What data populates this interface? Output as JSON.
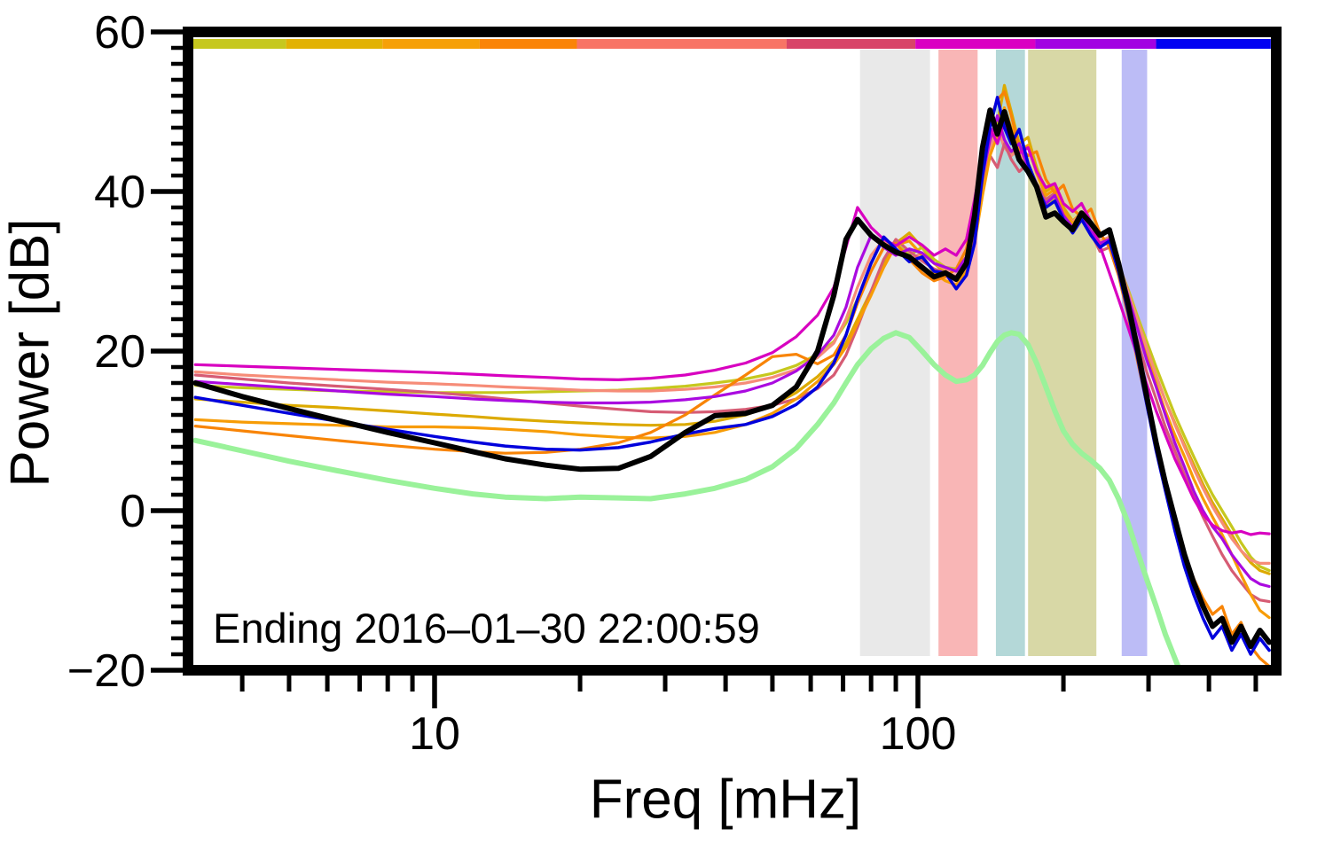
{
  "page": {
    "background": "#ffffff"
  },
  "chart_data": {
    "type": "line",
    "title": "",
    "xlabel": "Freq [mHz]",
    "ylabel": "Power [dB]",
    "annotation": "Ending 2016–01–30 22:00:59",
    "x_scale": "log",
    "xlim_mHz": [
      3.16,
      537
    ],
    "ylim_dB": [
      -20,
      60
    ],
    "grid": false,
    "legend": "none",
    "x_major_ticks": [
      {
        "value": 10,
        "label": "10"
      },
      {
        "value": 100,
        "label": "100"
      }
    ],
    "x_minor_ticks": [
      4,
      5,
      6,
      7,
      8,
      9,
      20,
      30,
      40,
      50,
      60,
      70,
      80,
      90,
      200,
      300,
      400,
      500
    ],
    "y_major_ticks": [
      {
        "value": -20,
        "label": "−20"
      },
      {
        "value": 0,
        "label": "0"
      },
      {
        "value": 20,
        "label": "20"
      },
      {
        "value": 40,
        "label": "40"
      },
      {
        "value": 60,
        "label": "60"
      }
    ],
    "y_minor_step_dB": 2,
    "top_colorbar": {
      "edges_mHz": [
        3.16,
        4.93,
        7.8,
        12.4,
        19.7,
        53.5,
        98.8,
        175,
        311,
        537
      ],
      "colors": [
        "#c6c81e",
        "#e2b204",
        "#f6a008",
        "#fa8408",
        "#f87466",
        "#d84468",
        "#da00c2",
        "#a202e2",
        "#0202f2"
      ]
    },
    "bands": [
      {
        "from_mHz": 75.9,
        "to_mHz": 105.9,
        "color": "#e9e9e9"
      },
      {
        "from_mHz": 110.3,
        "to_mHz": 132.9,
        "color": "#f9b6b6"
      },
      {
        "from_mHz": 145.0,
        "to_mHz": 166.5,
        "color": "#b4d8d8"
      },
      {
        "from_mHz": 169.0,
        "to_mHz": 234.0,
        "color": "#d8d8a6"
      },
      {
        "from_mHz": 264.0,
        "to_mHz": 298.0,
        "color": "#bcbcf6"
      }
    ],
    "freqs_mHz": [
      3.2,
      4,
      5,
      6.3,
      8,
      10,
      12,
      14,
      17,
      20,
      24,
      28,
      33,
      38,
      44,
      50,
      56,
      62,
      67,
      71,
      75,
      80,
      85,
      90,
      96,
      102,
      108,
      114,
      120,
      126,
      131,
      136,
      141,
      146,
      151,
      156,
      162,
      169,
      176,
      184,
      192,
      200,
      209,
      218,
      228,
      238,
      249,
      260,
      272,
      284,
      297,
      311,
      325,
      340,
      356,
      372,
      389,
      407,
      426,
      446,
      466,
      488,
      510,
      533
    ],
    "series": [
      {
        "name": "pale-green-spectrum",
        "color": "#9af29a",
        "width": 6,
        "values_dB": [
          8.8,
          7.5,
          6.2,
          5.0,
          3.8,
          2.8,
          2.1,
          1.7,
          1.5,
          1.7,
          1.6,
          1.5,
          2.1,
          2.8,
          3.9,
          5.5,
          7.8,
          10.8,
          13.5,
          16.0,
          18.3,
          20.3,
          21.6,
          22.3,
          21.7,
          20.0,
          18.3,
          17.0,
          16.2,
          16.4,
          17.0,
          18.2,
          19.8,
          21.2,
          22.0,
          22.3,
          22.1,
          20.8,
          18.5,
          15.5,
          12.5,
          10.0,
          8.3,
          7.2,
          6.3,
          5.3,
          3.8,
          1.5,
          -1.5,
          -5.0,
          -8.5,
          -12.0,
          -15.5,
          -18.5,
          -21.5,
          -24.0,
          -26.5,
          -29.0,
          -31.5,
          -34.0,
          -36.0,
          -38.0,
          -40.0,
          -42.0
        ]
      },
      {
        "name": "gold-spectrum",
        "color": "#dcaa00",
        "width": 3.2,
        "values_dB": [
          14.0,
          13.6,
          13.2,
          12.9,
          12.5,
          12.1,
          11.8,
          11.5,
          11.2,
          11.0,
          10.8,
          10.7,
          10.8,
          11.2,
          12.0,
          13.2,
          14.8,
          16.8,
          18.8,
          21.0,
          24.0,
          27.5,
          31.0,
          33.5,
          34.8,
          33.0,
          31.0,
          29.8,
          29.3,
          30.8,
          34.5,
          41.0,
          45.5,
          48.5,
          53.3,
          50.0,
          46.0,
          46.8,
          43.0,
          40.0,
          40.8,
          38.0,
          36.3,
          37.3,
          35.0,
          33.5,
          34.0,
          30.5,
          27.0,
          23.5,
          20.0,
          16.8,
          13.8,
          11.0,
          8.3,
          5.8,
          3.3,
          1.0,
          -1.0,
          -3.0,
          -5.0,
          -6.5,
          -7.5,
          -7.9
        ]
      },
      {
        "name": "yellow-olive-spectrum",
        "color": "#c6c81e",
        "width": 3.2,
        "values_dB": [
          15.7,
          15.4,
          15.2,
          15.0,
          14.9,
          14.8,
          14.8,
          14.8,
          14.9,
          15.0,
          15.1,
          15.3,
          15.6,
          16.0,
          16.5,
          17.2,
          18.2,
          19.6,
          21.2,
          23.5,
          26.5,
          30.0,
          33.0,
          33.5,
          32.0,
          33.0,
          31.5,
          30.5,
          30.3,
          31.8,
          35.5,
          41.5,
          46.0,
          48.5,
          46.0,
          44.5,
          45.5,
          42.8,
          40.3,
          38.3,
          39.0,
          37.0,
          35.8,
          36.5,
          34.8,
          33.3,
          33.8,
          30.8,
          27.8,
          24.5,
          21.3,
          18.0,
          15.0,
          12.0,
          9.3,
          6.8,
          4.3,
          2.0,
          0.0,
          -2.0,
          -4.0,
          -5.8,
          -7.0,
          -7.5
        ]
      },
      {
        "name": "salmon-spectrum",
        "color": "#f68c78",
        "width": 3.2,
        "values_dB": [
          17.4,
          17.0,
          16.7,
          16.4,
          16.1,
          15.9,
          15.7,
          15.5,
          15.3,
          15.1,
          15.0,
          15.0,
          15.2,
          15.5,
          16.0,
          16.7,
          17.7,
          19.2,
          21.0,
          24.0,
          28.0,
          32.0,
          34.0,
          32.5,
          31.5,
          32.3,
          31.0,
          30.3,
          30.0,
          31.5,
          35.0,
          41.5,
          45.5,
          48.0,
          45.5,
          44.5,
          45.3,
          42.5,
          40.5,
          38.8,
          39.3,
          37.3,
          36.2,
          37.2,
          35.2,
          33.8,
          34.3,
          31.0,
          27.5,
          24.0,
          20.5,
          17.0,
          13.8,
          10.8,
          8.0,
          5.3,
          2.8,
          0.5,
          -1.5,
          -3.5,
          -5.0,
          -6.2,
          -6.6,
          -6.6
        ]
      },
      {
        "name": "rose-spectrum",
        "color": "#d65c74",
        "width": 3.2,
        "values_dB": [
          17.0,
          16.5,
          16.0,
          15.6,
          15.2,
          14.8,
          14.4,
          14.0,
          13.5,
          13.1,
          12.7,
          12.4,
          12.3,
          12.4,
          12.7,
          13.2,
          14.0,
          15.3,
          17.0,
          19.5,
          23.0,
          27.5,
          31.5,
          34.0,
          32.5,
          31.3,
          30.3,
          29.8,
          29.3,
          30.8,
          34.5,
          40.5,
          44.5,
          43.0,
          46.0,
          44.0,
          42.5,
          43.5,
          41.0,
          39.0,
          39.8,
          37.5,
          36.0,
          36.8,
          34.8,
          32.5,
          33.0,
          29.5,
          25.5,
          21.5,
          17.5,
          14.0,
          10.5,
          7.5,
          4.5,
          1.8,
          -0.8,
          -3.2,
          -5.5,
          -7.5,
          -9.0,
          -10.5,
          -11.2,
          -11.4
        ]
      },
      {
        "name": "orange-spectrum",
        "color": "#f79c06",
        "width": 3.2,
        "values_dB": [
          11.4,
          11.1,
          10.9,
          10.7,
          10.5,
          10.5,
          10.4,
          10.2,
          9.9,
          9.5,
          9.2,
          9.1,
          9.3,
          9.8,
          10.8,
          12.2,
          14.0,
          16.2,
          18.3,
          20.5,
          23.5,
          27.0,
          30.5,
          33.3,
          33.8,
          32.0,
          29.8,
          28.8,
          28.3,
          30.0,
          33.5,
          39.5,
          44.5,
          47.0,
          50.5,
          48.0,
          45.0,
          45.8,
          42.3,
          39.5,
          40.3,
          37.5,
          36.0,
          37.0,
          34.8,
          33.3,
          33.8,
          30.3,
          26.8,
          23.0,
          19.3,
          15.8,
          12.5,
          9.5,
          6.8,
          4.0,
          1.5,
          -0.8,
          -3.0,
          -5.5,
          -8.0,
          -10.5,
          -12.5,
          -13.4
        ]
      },
      {
        "name": "dark-orange-spectrum",
        "color": "#f88406",
        "width": 3.2,
        "values_dB": [
          10.6,
          10.0,
          9.4,
          8.8,
          8.2,
          7.7,
          7.4,
          7.2,
          7.3,
          7.7,
          8.5,
          9.8,
          12.0,
          14.5,
          17.0,
          19.3,
          19.6,
          18.4,
          19.5,
          22.0,
          26.0,
          30.0,
          33.0,
          33.5,
          31.5,
          29.8,
          28.8,
          29.3,
          30.3,
          32.8,
          38.0,
          44.5,
          49.0,
          51.5,
          52.5,
          49.5,
          45.5,
          44.5,
          45.0,
          41.5,
          39.8,
          40.8,
          37.8,
          36.8,
          37.8,
          34.8,
          33.0,
          29.5,
          24.5,
          19.0,
          13.5,
          8.0,
          3.0,
          -1.5,
          -5.5,
          -8.5,
          -11.0,
          -13.0,
          -12.0,
          -15.5,
          -14.0,
          -17.0,
          -18.5,
          -19.5
        ]
      },
      {
        "name": "purple-spectrum",
        "color": "#aa0ae0",
        "width": 3.2,
        "values_dB": [
          16.2,
          15.8,
          15.4,
          15.0,
          14.6,
          14.3,
          14.0,
          13.8,
          13.6,
          13.5,
          13.5,
          13.6,
          13.9,
          14.3,
          15.0,
          16.0,
          17.5,
          19.5,
          22.0,
          25.5,
          30.5,
          34.5,
          33.0,
          32.0,
          32.8,
          32.3,
          31.0,
          30.5,
          30.0,
          31.8,
          35.5,
          42.0,
          46.5,
          49.5,
          46.5,
          45.0,
          46.0,
          43.0,
          40.2,
          38.5,
          39.5,
          37.0,
          35.5,
          37.0,
          35.0,
          33.5,
          34.0,
          30.5,
          27.0,
          23.0,
          19.0,
          15.5,
          12.0,
          8.5,
          5.5,
          2.5,
          0.0,
          -2.0,
          -3.5,
          -5.5,
          -7.0,
          -8.5,
          -9.2,
          -9.5
        ]
      },
      {
        "name": "magenta-spectrum",
        "color": "#d800c0",
        "width": 3.2,
        "values_dB": [
          18.3,
          18.1,
          17.9,
          17.7,
          17.5,
          17.3,
          17.1,
          16.9,
          16.7,
          16.5,
          16.4,
          16.6,
          17.0,
          17.6,
          18.5,
          19.8,
          21.8,
          24.5,
          28.0,
          33.0,
          38.0,
          35.5,
          34.0,
          33.2,
          34.3,
          33.3,
          32.0,
          32.8,
          32.0,
          34.0,
          39.0,
          44.5,
          48.0,
          46.0,
          48.8,
          46.5,
          44.8,
          45.5,
          42.5,
          40.5,
          41.0,
          38.5,
          37.5,
          38.5,
          36.2,
          33.2,
          29.8,
          26.5,
          23.0,
          19.5,
          16.0,
          12.5,
          9.5,
          6.5,
          4.0,
          1.5,
          -0.5,
          -1.8,
          -2.5,
          -2.8,
          -2.6,
          -3.0,
          -2.8,
          -2.9
        ]
      },
      {
        "name": "blue-spectrum",
        "color": "#0000dc",
        "width": 3.5,
        "values_dB": [
          14.2,
          13.2,
          12.2,
          11.2,
          10.2,
          9.3,
          8.6,
          8.1,
          7.7,
          7.6,
          7.9,
          8.6,
          9.6,
          10.3,
          10.8,
          11.8,
          13.3,
          15.5,
          18.5,
          22.0,
          26.5,
          31.0,
          34.3,
          32.8,
          31.2,
          31.8,
          30.0,
          29.8,
          27.8,
          29.5,
          33.5,
          42.0,
          48.0,
          51.8,
          48.0,
          46.0,
          47.8,
          43.5,
          40.8,
          38.0,
          38.8,
          36.5,
          34.8,
          36.5,
          34.5,
          33.0,
          33.8,
          30.0,
          25.0,
          19.5,
          13.5,
          7.5,
          2.5,
          -2.5,
          -7.0,
          -10.5,
          -13.5,
          -16.0,
          -14.5,
          -17.5,
          -15.5,
          -18.0,
          -16.0,
          -17.5
        ]
      },
      {
        "name": "black-current-spectrum",
        "color": "#000000",
        "width": 6,
        "values_dB": [
          16.0,
          14.3,
          12.8,
          11.3,
          9.8,
          8.5,
          7.4,
          6.5,
          5.7,
          5.2,
          5.3,
          6.8,
          9.8,
          11.9,
          12.2,
          13.2,
          15.5,
          20.0,
          27.0,
          34.0,
          36.5,
          34.5,
          33.3,
          32.4,
          31.8,
          30.5,
          29.3,
          29.8,
          29.0,
          31.0,
          37.0,
          45.5,
          50.2,
          47.2,
          50.0,
          47.0,
          44.0,
          42.5,
          40.6,
          36.8,
          37.3,
          36.2,
          35.2,
          37.3,
          36.0,
          34.5,
          35.2,
          31.0,
          26.0,
          20.5,
          14.5,
          8.5,
          3.5,
          -1.0,
          -5.5,
          -9.0,
          -12.0,
          -14.5,
          -13.5,
          -16.5,
          -14.5,
          -17.0,
          -15.0,
          -16.5
        ]
      }
    ]
  }
}
